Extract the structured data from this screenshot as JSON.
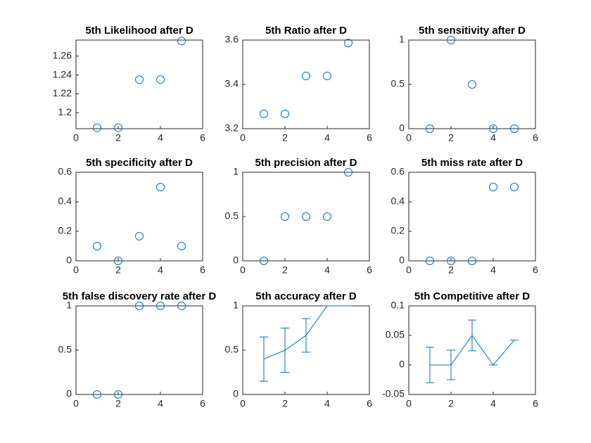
{
  "chart_data": [
    {
      "type": "scatter",
      "title": "5th Likelihood after D",
      "x": [
        1,
        2,
        3,
        4,
        5
      ],
      "values": [
        1.184,
        1.184,
        1.235,
        1.235,
        1.276
      ],
      "color": "#0072bd",
      "xlim": [
        0,
        6
      ],
      "xticks": [
        0,
        2,
        4,
        6
      ],
      "ylim": [
        1.183,
        1.277
      ],
      "yticks": [
        1.2,
        1.22,
        1.24,
        1.26
      ]
    },
    {
      "type": "scatter",
      "title": "5th Ratio after D",
      "x": [
        1,
        2,
        3,
        4,
        5
      ],
      "values": [
        3.267,
        3.267,
        3.438,
        3.438,
        3.587
      ],
      "color": "#0072bd",
      "xlim": [
        0,
        6
      ],
      "xticks": [
        0,
        2,
        4,
        6
      ],
      "ylim": [
        3.2,
        3.6
      ],
      "yticks": [
        3.2,
        3.4,
        3.6
      ]
    },
    {
      "type": "scatter",
      "title": "5th sensitivity after D",
      "x": [
        1,
        2,
        3,
        4,
        5
      ],
      "values": [
        0,
        1,
        0.5,
        0,
        0
      ],
      "color": "#0072bd",
      "xlim": [
        0,
        6
      ],
      "xticks": [
        0,
        2,
        4,
        6
      ],
      "ylim": [
        0,
        1
      ],
      "yticks": [
        0,
        0.5,
        1
      ]
    },
    {
      "type": "scatter",
      "title": "5th specificity after D",
      "x": [
        1,
        2,
        3,
        4,
        5
      ],
      "values": [
        0.1,
        0,
        0.167,
        0.5,
        0.1
      ],
      "color": "#0072bd",
      "xlim": [
        0,
        6
      ],
      "xticks": [
        0,
        2,
        4,
        6
      ],
      "ylim": [
        0,
        0.6
      ],
      "yticks": [
        0,
        0.2,
        0.4,
        0.6
      ]
    },
    {
      "type": "scatter",
      "title": "5th precision after D",
      "x": [
        1,
        2,
        3,
        4,
        5
      ],
      "values": [
        0,
        0.5,
        0.5,
        0.5,
        1
      ],
      "color": "#0072bd",
      "xlim": [
        0,
        6
      ],
      "xticks": [
        0,
        2,
        4,
        6
      ],
      "ylim": [
        0,
        1
      ],
      "yticks": [
        0,
        0.5,
        1
      ]
    },
    {
      "type": "scatter",
      "title": "5th miss rate after D",
      "x": [
        1,
        2,
        3,
        4,
        5
      ],
      "values": [
        0,
        0,
        0,
        0.5,
        0.5
      ],
      "color": "#0072bd",
      "xlim": [
        0,
        6
      ],
      "xticks": [
        0,
        2,
        4,
        6
      ],
      "ylim": [
        0,
        0.6
      ],
      "yticks": [
        0,
        0.2,
        0.4,
        0.6
      ]
    },
    {
      "type": "scatter",
      "title": "5th false discovery rate after D",
      "x": [
        1,
        2,
        3,
        4,
        5
      ],
      "values": [
        0,
        0,
        1,
        1,
        1
      ],
      "color": "#0072bd",
      "xlim": [
        0,
        6
      ],
      "xticks": [
        0,
        2,
        4,
        6
      ],
      "ylim": [
        0,
        1
      ],
      "yticks": [
        0,
        0.5,
        1
      ]
    },
    {
      "type": "errorbar",
      "title": "5th accuracy after D",
      "x": [
        1,
        2,
        3,
        4,
        5
      ],
      "values": [
        0.4,
        0.5,
        0.667,
        1,
        1
      ],
      "errors": [
        0.25,
        0.25,
        0.19,
        0,
        0
      ],
      "color": "#0072bd",
      "xlim": [
        0,
        6
      ],
      "xticks": [
        0,
        2,
        4,
        6
      ],
      "ylim": [
        0,
        1
      ],
      "yticks": [
        0,
        0.5,
        1
      ]
    },
    {
      "type": "errorbar",
      "title": "5th Competitive after D",
      "x": [
        1,
        2,
        3,
        4,
        5
      ],
      "values": [
        0,
        0,
        0.05,
        0,
        0.042
      ],
      "errors": [
        0.03,
        0.025,
        0.026,
        0,
        0
      ],
      "color": "#0072bd",
      "xlim": [
        0,
        6
      ],
      "xticks": [
        0,
        2,
        4,
        6
      ],
      "ylim": [
        -0.05,
        0.1
      ],
      "yticks": [
        -0.05,
        0,
        0.05,
        0.1
      ]
    }
  ]
}
